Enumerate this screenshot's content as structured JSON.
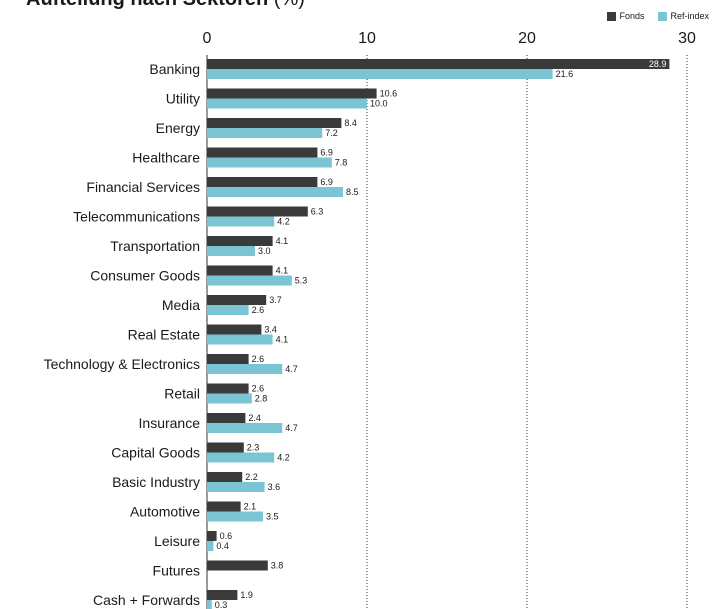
{
  "chart_data": {
    "type": "bar",
    "orientation": "horizontal",
    "title": "Aufteilung nach Sektoren",
    "title_unit": " (%)",
    "categories": [
      "Banking",
      "Utility",
      "Energy",
      "Healthcare",
      "Financial Services",
      "Telecommunications",
      "Transportation",
      "Consumer Goods",
      "Media",
      "Real Estate",
      "Technology & Electronics",
      "Retail",
      "Insurance",
      "Capital Goods",
      "Basic Industry",
      "Automotive",
      "Leisure",
      "Futures",
      "Cash + Forwards"
    ],
    "series": [
      {
        "name": "Fonds",
        "color": "#3a3a3a",
        "values": [
          28.9,
          10.6,
          8.4,
          6.9,
          6.9,
          6.3,
          4.1,
          4.1,
          3.7,
          3.4,
          2.6,
          2.6,
          2.4,
          2.3,
          2.2,
          2.1,
          0.6,
          3.8,
          1.9
        ]
      },
      {
        "name": "Ref-index",
        "color": "#7ac4d4",
        "values": [
          21.6,
          10.0,
          7.2,
          7.8,
          8.5,
          4.2,
          3.0,
          5.3,
          2.6,
          4.1,
          4.7,
          2.8,
          4.7,
          4.2,
          3.6,
          3.5,
          0.4,
          null,
          0.3
        ]
      }
    ],
    "xlim": [
      0,
      30
    ],
    "xticks": [
      0,
      10,
      20,
      30
    ],
    "grid": true,
    "legend_position": "top-right"
  }
}
